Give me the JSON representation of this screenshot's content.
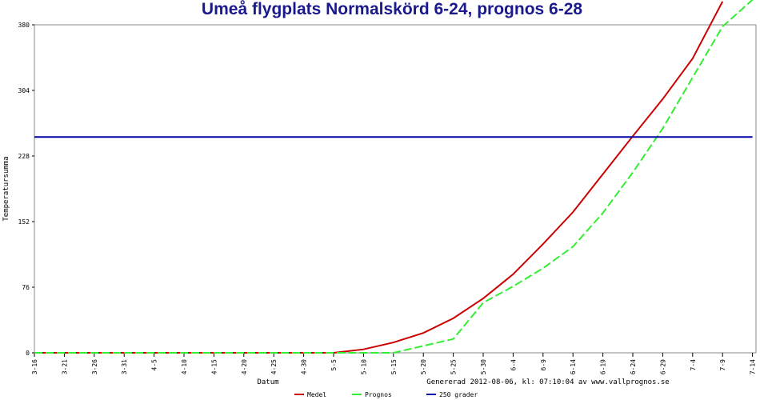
{
  "chart_data": {
    "type": "line",
    "title": "Umeå flygplats Normalskörd 6-24, prognos 6-28",
    "y_label": "Temperatursumma",
    "x_label": "Datum",
    "note": "Genererad 2012-08-06, kl: 07:10:04 av www.vallprognos.se",
    "categories": [
      "3-16",
      "3-21",
      "3-26",
      "3-31",
      "4-5",
      "4-10",
      "4-15",
      "4-20",
      "4-25",
      "4-30",
      "5-5",
      "5-10",
      "5-15",
      "5-20",
      "5-25",
      "5-30",
      "6-4",
      "6-9",
      "6-14",
      "6-19",
      "6-24",
      "6-29",
      "7-4",
      "7-9",
      "7-14"
    ],
    "series": [
      {
        "name": "Medel",
        "color": "#cc0000",
        "values": [
          0,
          0,
          0,
          0,
          0,
          0,
          0,
          0,
          0,
          0,
          0,
          4,
          12,
          23,
          40,
          63,
          91,
          126,
          163,
          207,
          251,
          294,
          341,
          407,
          null
        ]
      },
      {
        "name": "Prognos",
        "color": "#33ee33",
        "values": [
          0,
          0,
          0,
          0,
          0,
          0,
          0,
          0,
          0,
          0,
          0,
          0,
          0,
          8,
          16,
          58,
          77,
          98,
          123,
          162,
          209,
          260,
          319,
          378,
          409
        ]
      },
      {
        "name": "250 grader",
        "color": "#0000aa",
        "values": [
          250,
          250,
          250,
          250,
          250,
          250,
          250,
          250,
          250,
          250,
          250,
          250,
          250,
          250,
          250,
          250,
          250,
          250,
          250,
          250,
          250,
          250,
          250,
          250,
          250
        ]
      }
    ],
    "ylim": [
      0,
      380
    ],
    "yticks": [
      0,
      76,
      152,
      228,
      304,
      380
    ]
  }
}
